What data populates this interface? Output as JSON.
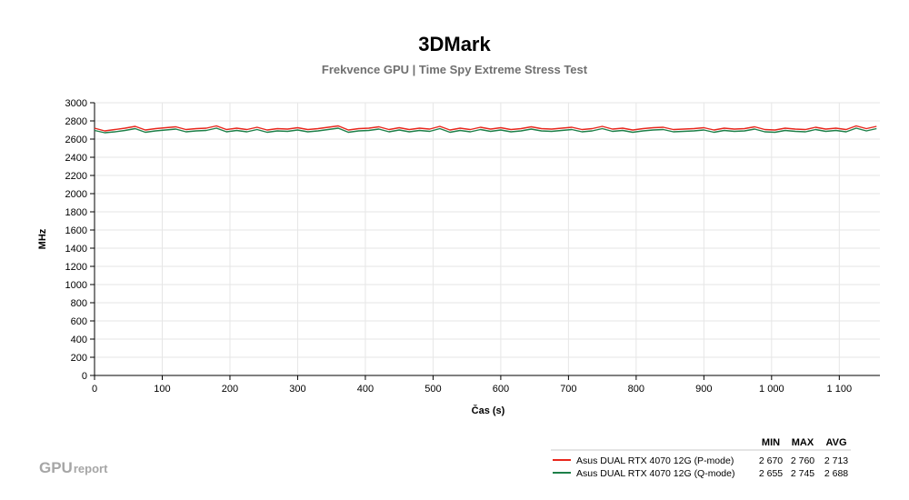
{
  "chart_data": {
    "type": "line",
    "title": "3DMark",
    "subtitle": "Frekvence GPU | Time Spy Extreme Stress Test",
    "xlabel": "Čas (s)",
    "ylabel": "MHz",
    "xlim": [
      0,
      1160
    ],
    "ylim": [
      0,
      3000
    ],
    "x_ticks": [
      0,
      100,
      200,
      300,
      400,
      500,
      600,
      700,
      800,
      900,
      1000,
      1100
    ],
    "x_tick_labels": [
      "0",
      "100",
      "200",
      "300",
      "400",
      "500",
      "600",
      "700",
      "800",
      "900",
      "1 000",
      "1 100"
    ],
    "y_ticks": [
      0,
      200,
      400,
      600,
      800,
      1000,
      1200,
      1400,
      1600,
      1800,
      2000,
      2200,
      2400,
      2600,
      2800,
      3000
    ],
    "y_tick_labels": [
      "0",
      "200",
      "400",
      "600",
      "800",
      "1000",
      "1200",
      "1400",
      "1600",
      "1800",
      "2000",
      "2200",
      "2400",
      "2600",
      "2800",
      "3000"
    ],
    "grid": true,
    "legend_position": "bottom-right",
    "x": [
      0,
      15,
      30,
      45,
      60,
      75,
      90,
      105,
      120,
      135,
      150,
      165,
      180,
      195,
      210,
      225,
      240,
      255,
      270,
      285,
      300,
      315,
      330,
      345,
      360,
      375,
      390,
      405,
      420,
      435,
      450,
      465,
      480,
      495,
      510,
      525,
      540,
      555,
      570,
      585,
      600,
      615,
      630,
      645,
      660,
      675,
      690,
      705,
      720,
      735,
      750,
      765,
      780,
      795,
      810,
      825,
      840,
      855,
      870,
      885,
      900,
      915,
      930,
      945,
      960,
      975,
      990,
      1005,
      1020,
      1035,
      1050,
      1065,
      1080,
      1095,
      1110,
      1125,
      1140,
      1155
    ],
    "series": [
      {
        "name": "Asus DUAL RTX 4070 12G (P-mode)",
        "color": "#e8261c",
        "values": [
          2720,
          2690,
          2705,
          2720,
          2740,
          2700,
          2715,
          2725,
          2735,
          2705,
          2715,
          2720,
          2745,
          2705,
          2720,
          2705,
          2730,
          2700,
          2715,
          2710,
          2725,
          2705,
          2715,
          2730,
          2745,
          2700,
          2715,
          2720,
          2735,
          2705,
          2725,
          2705,
          2720,
          2710,
          2740,
          2700,
          2720,
          2705,
          2730,
          2710,
          2725,
          2705,
          2715,
          2735,
          2715,
          2710,
          2720,
          2730,
          2705,
          2715,
          2740,
          2710,
          2720,
          2700,
          2715,
          2725,
          2730,
          2705,
          2710,
          2715,
          2725,
          2700,
          2720,
          2710,
          2715,
          2735,
          2705,
          2700,
          2720,
          2710,
          2705,
          2730,
          2710,
          2720,
          2705,
          2745,
          2715,
          2740
        ],
        "min": "2 670",
        "max": "2 760",
        "avg": "2 713"
      },
      {
        "name": "Asus DUAL RTX 4070 12G (Q-mode)",
        "color": "#1d8049",
        "values": [
          2695,
          2670,
          2680,
          2695,
          2715,
          2675,
          2690,
          2700,
          2710,
          2680,
          2690,
          2695,
          2720,
          2680,
          2695,
          2680,
          2705,
          2675,
          2690,
          2685,
          2700,
          2680,
          2690,
          2705,
          2720,
          2675,
          2690,
          2695,
          2710,
          2680,
          2700,
          2680,
          2695,
          2685,
          2715,
          2675,
          2695,
          2680,
          2705,
          2685,
          2700,
          2680,
          2690,
          2710,
          2690,
          2685,
          2695,
          2705,
          2680,
          2690,
          2715,
          2685,
          2695,
          2675,
          2690,
          2700,
          2705,
          2680,
          2685,
          2690,
          2700,
          2675,
          2695,
          2685,
          2690,
          2710,
          2680,
          2675,
          2695,
          2685,
          2680,
          2705,
          2685,
          2695,
          2680,
          2720,
          2690,
          2715
        ],
        "min": "2 655",
        "max": "2 745",
        "avg": "2 688"
      }
    ]
  },
  "legend": {
    "headers": {
      "min": "MIN",
      "max": "MAX",
      "avg": "AVG"
    }
  },
  "branding": {
    "logo_main": "GPU",
    "logo_suffix": "report"
  }
}
